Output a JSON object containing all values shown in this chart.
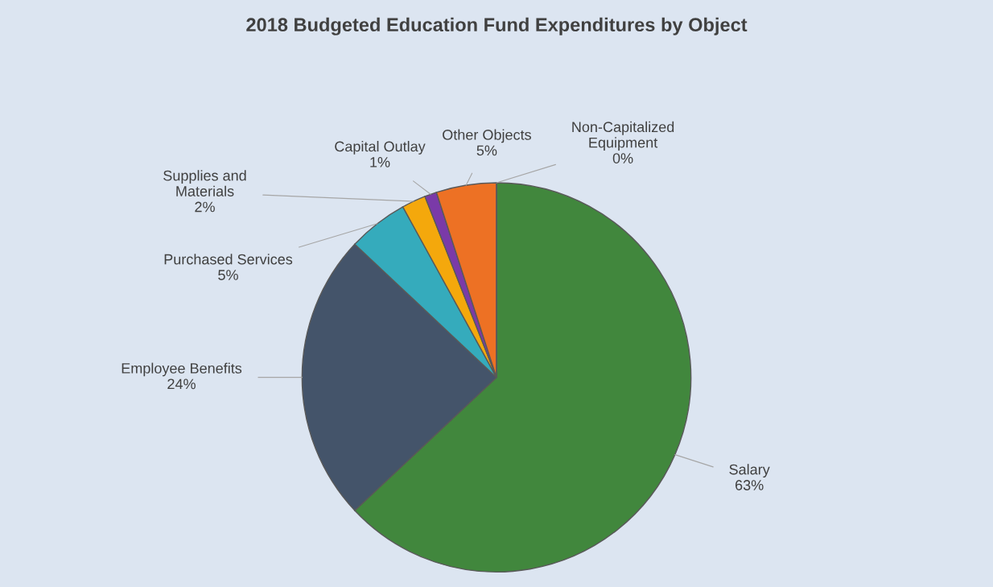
{
  "chart_data": {
    "type": "pie",
    "title": "2018 Budgeted Education Fund Expenditures by Object",
    "categories": [
      "Salary",
      "Employee Benefits",
      "Purchased Services",
      "Supplies and\nMaterials",
      "Capital Outlay",
      "Other Objects",
      "Non-Capitalized\nEquipment"
    ],
    "values": [
      63,
      24,
      5,
      2,
      1,
      5,
      0
    ],
    "value_labels": [
      "63%",
      "24%",
      "5%",
      "2%",
      "1%",
      "5%",
      "0%"
    ],
    "colors": [
      "#41873d",
      "#44546a",
      "#35abbc",
      "#f4a80c",
      "#7a3aa8",
      "#ed7124",
      "#a5a5a5"
    ]
  }
}
